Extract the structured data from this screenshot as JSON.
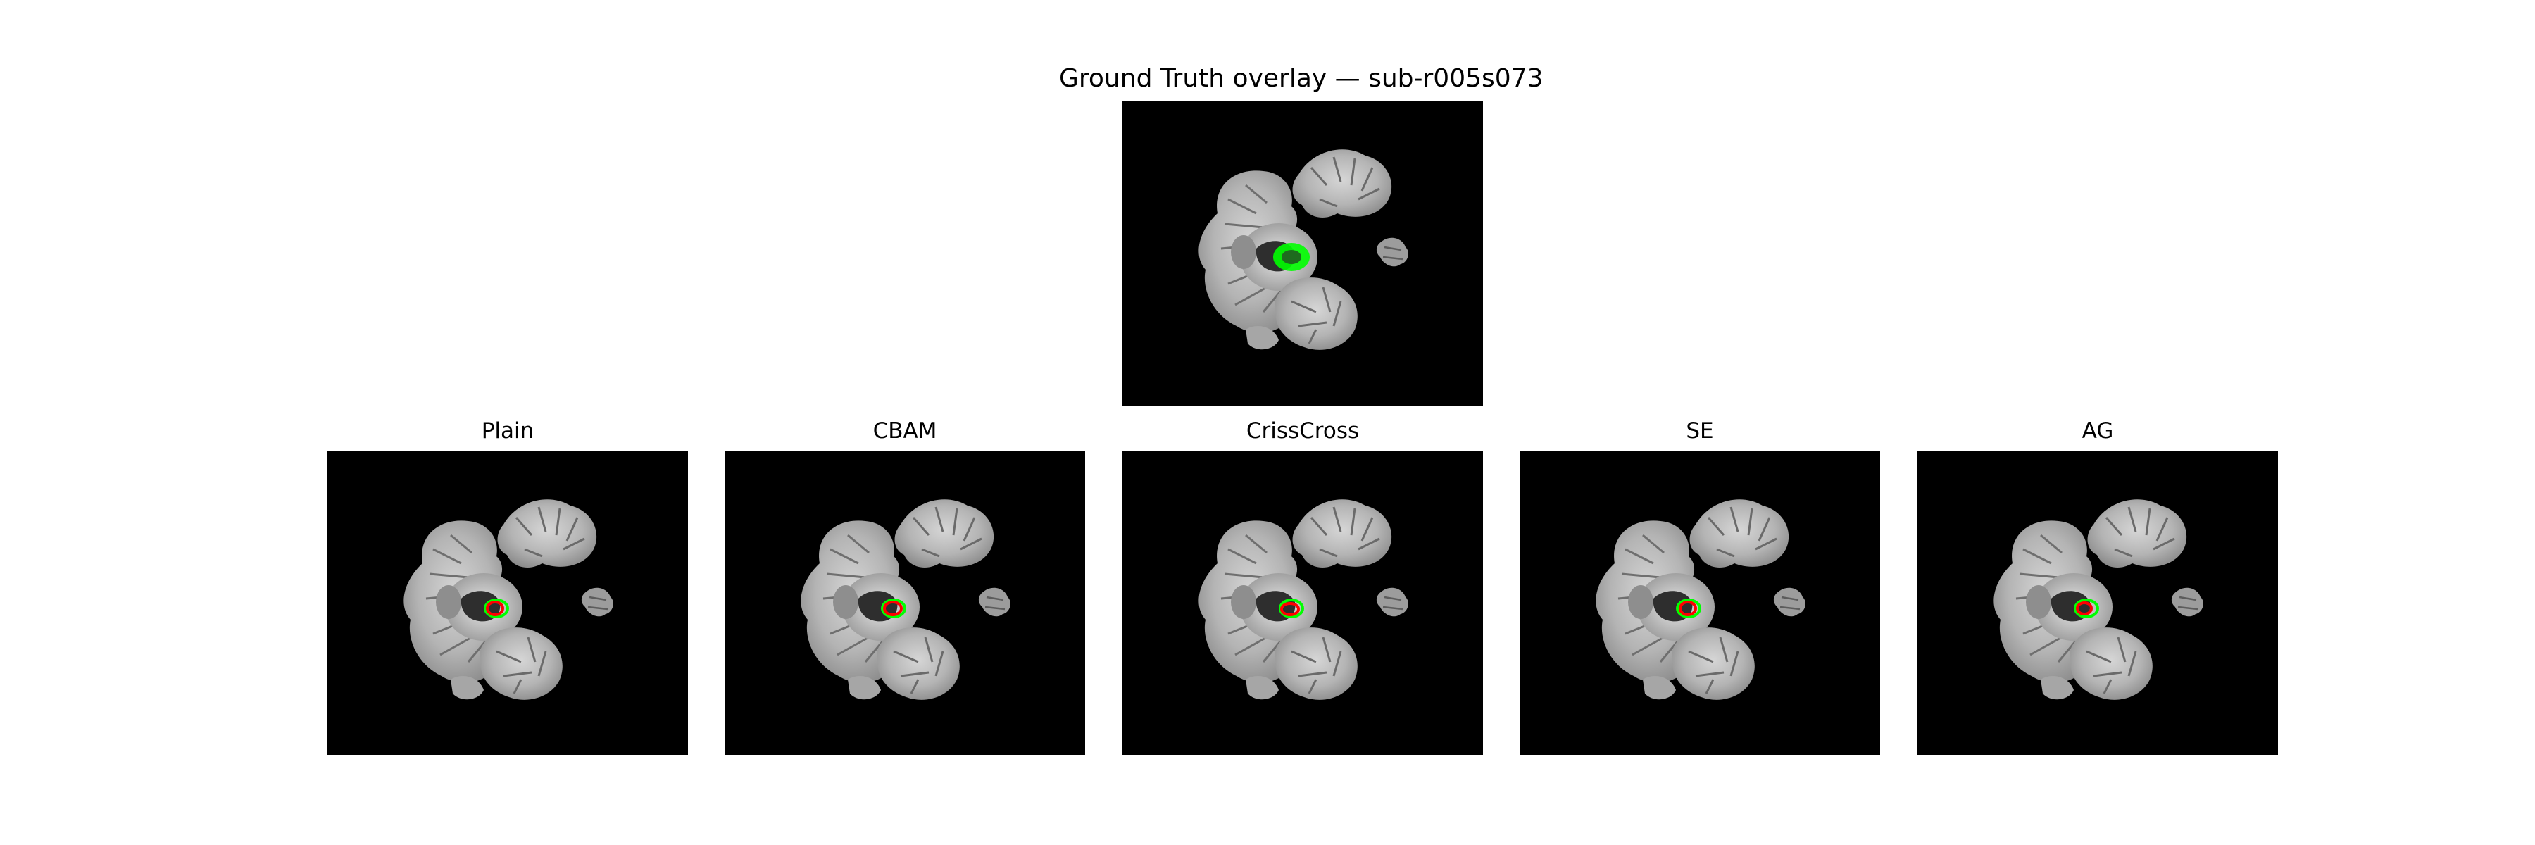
{
  "figure": {
    "title": "Ground Truth overlay — sub-r005s073"
  },
  "panels": [
    {
      "title": "Plain"
    },
    {
      "title": "CBAM"
    },
    {
      "title": "CrissCross"
    },
    {
      "title": "SE"
    },
    {
      "title": "AG"
    }
  ],
  "colors": {
    "background": "#000000",
    "ground_truth": "#00ff00",
    "prediction": "#ff0000"
  }
}
